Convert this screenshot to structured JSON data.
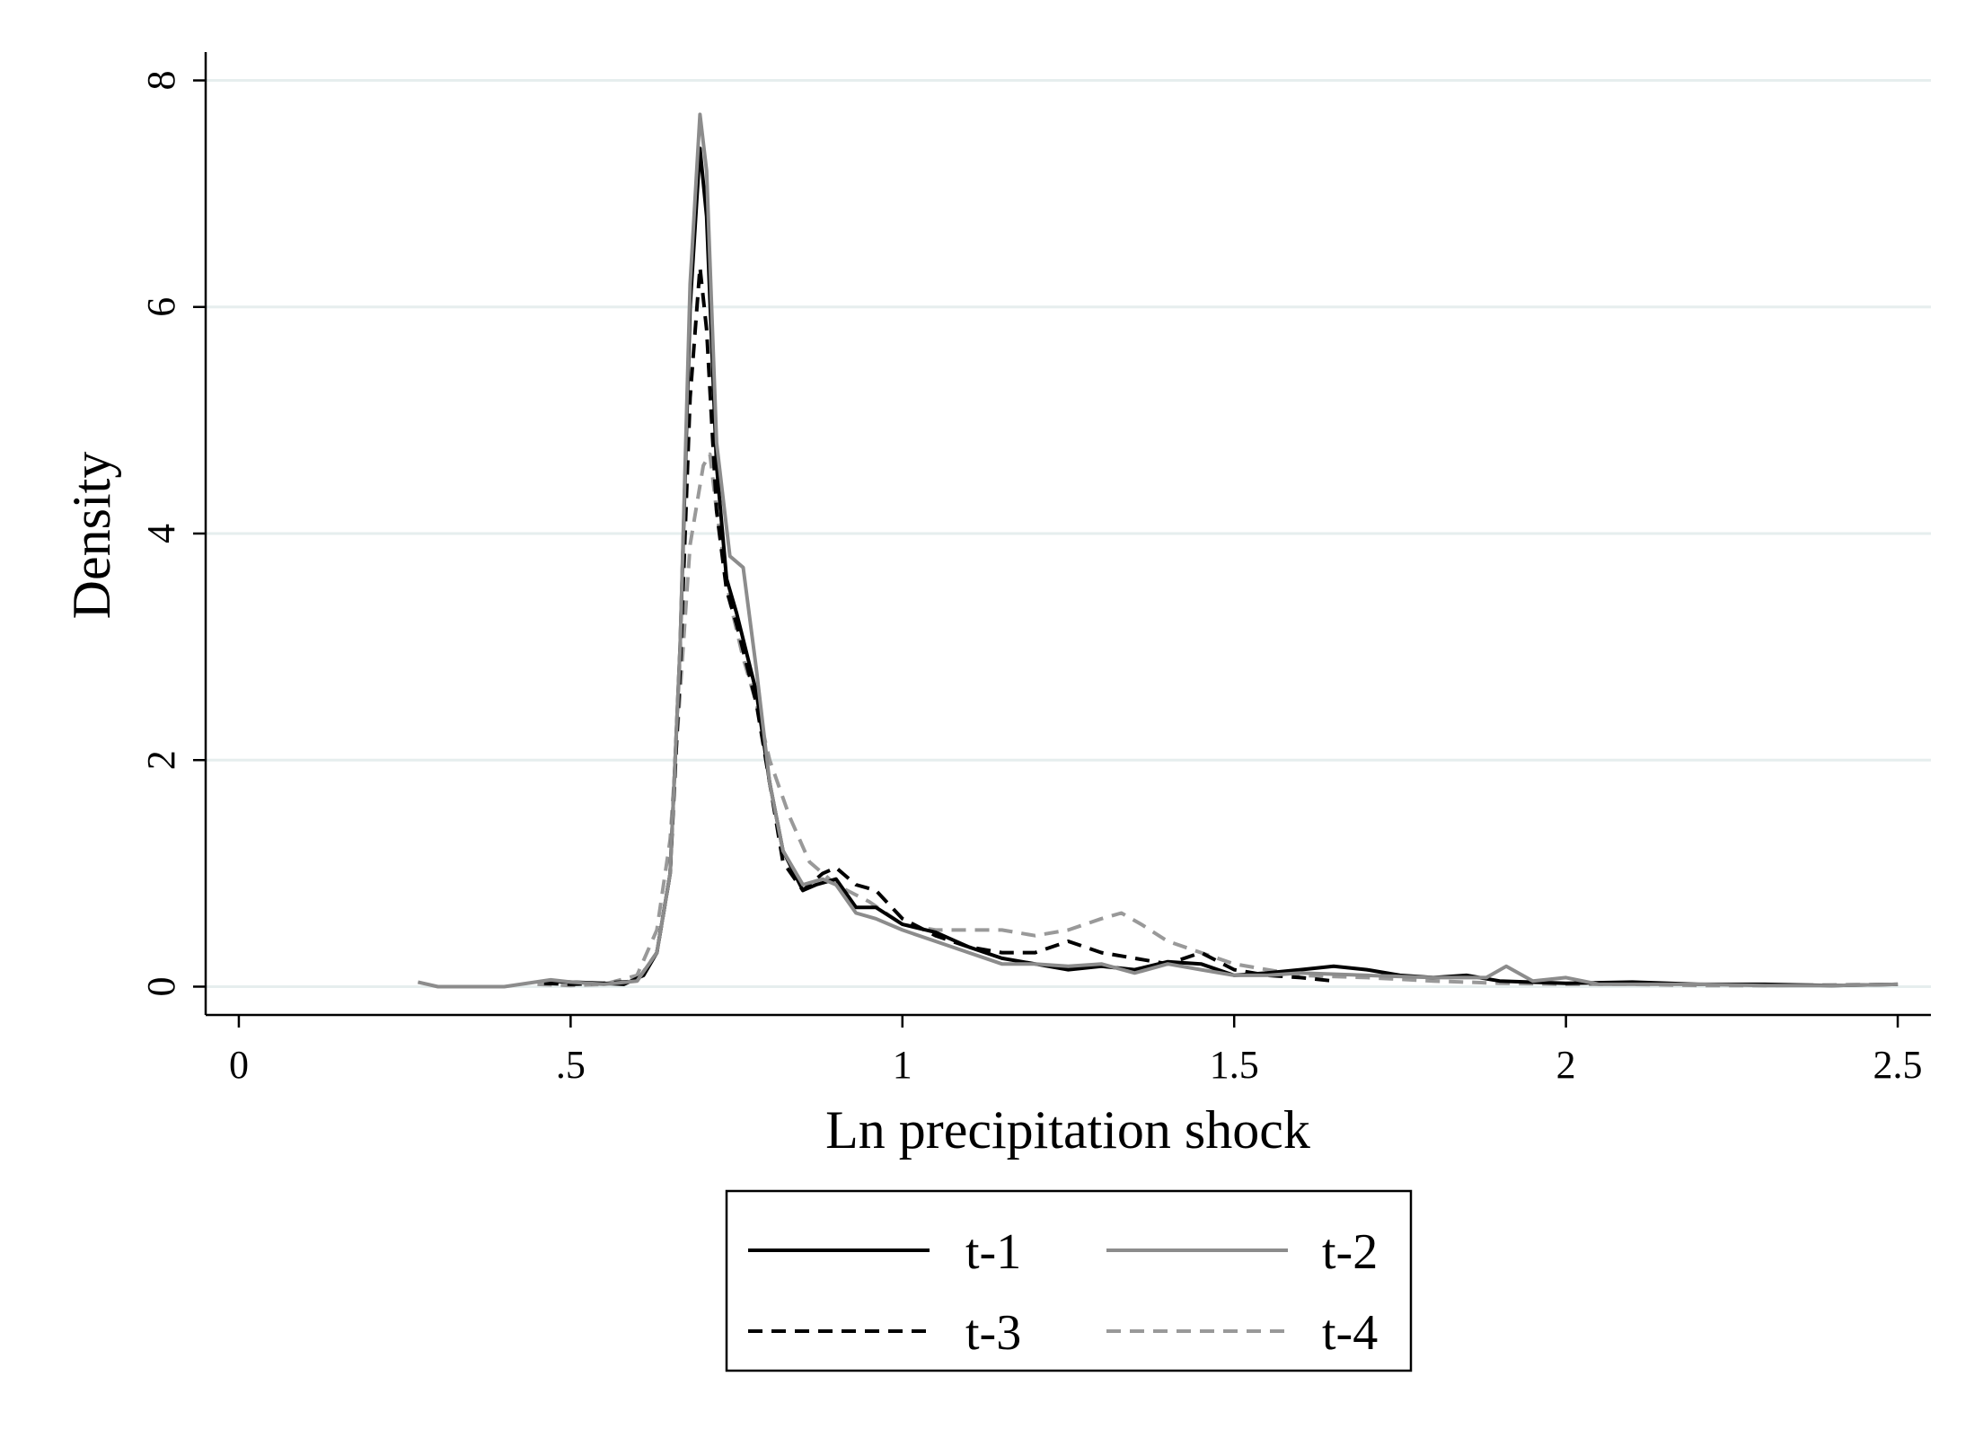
{
  "chart_data": {
    "type": "line",
    "title": "",
    "xlabel": "Ln precipitation shock",
    "ylabel": "Density",
    "xlim": [
      -0.05,
      2.55
    ],
    "ylim": [
      -0.25,
      8.25
    ],
    "xticks": [
      0,
      0.5,
      1,
      1.5,
      2,
      2.5
    ],
    "xtick_labels": [
      "0",
      ".5",
      "1",
      "1.5",
      "2",
      "2.5"
    ],
    "yticks": [
      0,
      2,
      4,
      6,
      8
    ],
    "ytick_labels": [
      "0",
      "2",
      "4",
      "6",
      "8"
    ],
    "grid": "horizontal",
    "legend": {
      "position": "bottom",
      "columns": 2
    },
    "series": [
      {
        "name": "t-1",
        "color": "#000000",
        "dash": "solid",
        "points": [
          [
            0.46,
            0.05
          ],
          [
            0.5,
            0.04
          ],
          [
            0.55,
            0.03
          ],
          [
            0.58,
            0.02
          ],
          [
            0.61,
            0.1
          ],
          [
            0.63,
            0.3
          ],
          [
            0.65,
            1.0
          ],
          [
            0.665,
            3.0
          ],
          [
            0.68,
            6.0
          ],
          [
            0.695,
            7.4
          ],
          [
            0.705,
            6.8
          ],
          [
            0.72,
            4.6
          ],
          [
            0.735,
            3.6
          ],
          [
            0.75,
            3.3
          ],
          [
            0.78,
            2.6
          ],
          [
            0.8,
            1.8
          ],
          [
            0.82,
            1.2
          ],
          [
            0.85,
            0.85
          ],
          [
            0.87,
            0.9
          ],
          [
            0.9,
            0.95
          ],
          [
            0.93,
            0.7
          ],
          [
            0.96,
            0.7
          ],
          [
            1.0,
            0.55
          ],
          [
            1.05,
            0.48
          ],
          [
            1.1,
            0.35
          ],
          [
            1.15,
            0.25
          ],
          [
            1.2,
            0.2
          ],
          [
            1.25,
            0.15
          ],
          [
            1.3,
            0.18
          ],
          [
            1.35,
            0.15
          ],
          [
            1.4,
            0.22
          ],
          [
            1.45,
            0.2
          ],
          [
            1.5,
            0.1
          ],
          [
            1.55,
            0.12
          ],
          [
            1.6,
            0.15
          ],
          [
            1.65,
            0.18
          ],
          [
            1.7,
            0.15
          ],
          [
            1.75,
            0.1
          ],
          [
            1.8,
            0.08
          ],
          [
            1.85,
            0.1
          ],
          [
            1.9,
            0.05
          ],
          [
            2.0,
            0.03
          ],
          [
            2.1,
            0.04
          ],
          [
            2.2,
            0.02
          ],
          [
            2.3,
            0.02
          ],
          [
            2.4,
            0.01
          ],
          [
            2.5,
            0.02
          ]
        ]
      },
      {
        "name": "t-2",
        "color": "#8c8c8c",
        "dash": "solid",
        "points": [
          [
            0.27,
            0.04
          ],
          [
            0.3,
            0.0
          ],
          [
            0.4,
            0.0
          ],
          [
            0.47,
            0.06
          ],
          [
            0.5,
            0.04
          ],
          [
            0.55,
            0.02
          ],
          [
            0.6,
            0.05
          ],
          [
            0.63,
            0.3
          ],
          [
            0.65,
            1.0
          ],
          [
            0.665,
            3.0
          ],
          [
            0.68,
            6.2
          ],
          [
            0.695,
            7.7
          ],
          [
            0.705,
            7.2
          ],
          [
            0.72,
            4.8
          ],
          [
            0.74,
            3.8
          ],
          [
            0.76,
            3.7
          ],
          [
            0.78,
            2.8
          ],
          [
            0.8,
            1.8
          ],
          [
            0.82,
            1.2
          ],
          [
            0.85,
            0.9
          ],
          [
            0.88,
            0.95
          ],
          [
            0.9,
            0.9
          ],
          [
            0.93,
            0.65
          ],
          [
            0.96,
            0.6
          ],
          [
            1.0,
            0.5
          ],
          [
            1.05,
            0.4
          ],
          [
            1.1,
            0.3
          ],
          [
            1.15,
            0.2
          ],
          [
            1.2,
            0.2
          ],
          [
            1.25,
            0.18
          ],
          [
            1.3,
            0.2
          ],
          [
            1.35,
            0.12
          ],
          [
            1.4,
            0.2
          ],
          [
            1.45,
            0.15
          ],
          [
            1.5,
            0.1
          ],
          [
            1.55,
            0.1
          ],
          [
            1.6,
            0.12
          ],
          [
            1.7,
            0.1
          ],
          [
            1.8,
            0.08
          ],
          [
            1.88,
            0.08
          ],
          [
            1.91,
            0.18
          ],
          [
            1.95,
            0.05
          ],
          [
            2.0,
            0.08
          ],
          [
            2.05,
            0.02
          ],
          [
            2.1,
            0.02
          ],
          [
            2.2,
            0.02
          ],
          [
            2.3,
            0.01
          ],
          [
            2.4,
            0.01
          ],
          [
            2.5,
            0.02
          ]
        ]
      },
      {
        "name": "t-3",
        "color": "#000000",
        "dash": "dashed",
        "points": [
          [
            0.46,
            0.03
          ],
          [
            0.5,
            0.02
          ],
          [
            0.55,
            0.03
          ],
          [
            0.6,
            0.05
          ],
          [
            0.63,
            0.3
          ],
          [
            0.65,
            1.0
          ],
          [
            0.665,
            2.8
          ],
          [
            0.68,
            5.2
          ],
          [
            0.695,
            6.35
          ],
          [
            0.705,
            5.8
          ],
          [
            0.72,
            4.2
          ],
          [
            0.735,
            3.5
          ],
          [
            0.75,
            3.2
          ],
          [
            0.78,
            2.5
          ],
          [
            0.8,
            1.8
          ],
          [
            0.82,
            1.1
          ],
          [
            0.85,
            0.85
          ],
          [
            0.88,
            1.0
          ],
          [
            0.9,
            1.05
          ],
          [
            0.93,
            0.9
          ],
          [
            0.96,
            0.85
          ],
          [
            1.0,
            0.6
          ],
          [
            1.05,
            0.45
          ],
          [
            1.1,
            0.35
          ],
          [
            1.15,
            0.3
          ],
          [
            1.2,
            0.3
          ],
          [
            1.25,
            0.4
          ],
          [
            1.3,
            0.3
          ],
          [
            1.35,
            0.25
          ],
          [
            1.4,
            0.2
          ],
          [
            1.45,
            0.3
          ],
          [
            1.5,
            0.15
          ],
          [
            1.55,
            0.1
          ],
          [
            1.6,
            0.08
          ],
          [
            1.65,
            0.05
          ]
        ]
      },
      {
        "name": "t-4",
        "color": "#999999",
        "dash": "dashed",
        "points": [
          [
            0.45,
            0.02
          ],
          [
            0.5,
            0.01
          ],
          [
            0.55,
            0.02
          ],
          [
            0.6,
            0.1
          ],
          [
            0.63,
            0.5
          ],
          [
            0.65,
            1.3
          ],
          [
            0.665,
            2.6
          ],
          [
            0.68,
            3.9
          ],
          [
            0.7,
            4.6
          ],
          [
            0.71,
            4.7
          ],
          [
            0.72,
            4.2
          ],
          [
            0.74,
            3.4
          ],
          [
            0.76,
            2.9
          ],
          [
            0.78,
            2.5
          ],
          [
            0.8,
            2.0
          ],
          [
            0.83,
            1.5
          ],
          [
            0.86,
            1.1
          ],
          [
            0.9,
            0.9
          ],
          [
            0.95,
            0.75
          ],
          [
            1.0,
            0.55
          ],
          [
            1.05,
            0.5
          ],
          [
            1.1,
            0.5
          ],
          [
            1.15,
            0.5
          ],
          [
            1.2,
            0.45
          ],
          [
            1.25,
            0.5
          ],
          [
            1.3,
            0.6
          ],
          [
            1.33,
            0.65
          ],
          [
            1.36,
            0.55
          ],
          [
            1.4,
            0.4
          ],
          [
            1.45,
            0.3
          ],
          [
            1.5,
            0.2
          ],
          [
            1.55,
            0.15
          ],
          [
            1.6,
            0.1
          ],
          [
            1.7,
            0.08
          ],
          [
            1.8,
            0.05
          ],
          [
            1.9,
            0.03
          ],
          [
            2.0,
            0.02
          ],
          [
            2.1,
            0.02
          ],
          [
            2.2,
            0.01
          ],
          [
            2.3,
            0.01
          ],
          [
            2.5,
            0.02
          ]
        ]
      }
    ]
  }
}
